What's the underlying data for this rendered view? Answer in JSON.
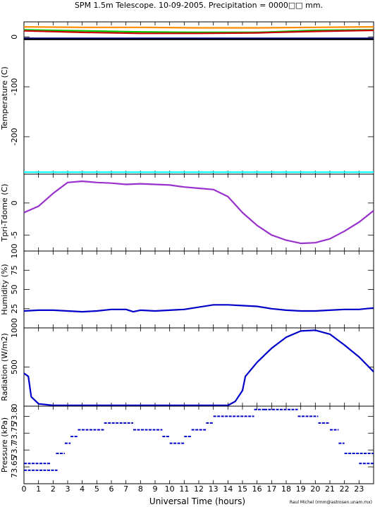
{
  "title": "SPM 1.5m Telescope. 10-09-2005. Precipitation = 0000□□ mm.",
  "xlabel": "Universal Time (hours)",
  "credit": "Raul Michel (rmm@astrosen.unam.mx)",
  "chart_data": [
    {
      "type": "line",
      "ylabel": "Temperature (C)",
      "ylim": [
        -275,
        30
      ],
      "yticks": [
        0,
        -100,
        -200
      ],
      "xlim": [
        0,
        24
      ],
      "series": [
        {
          "color": "#ff8c00",
          "x": [
            0,
            4,
            8,
            12,
            16,
            20,
            24
          ],
          "values": [
            20,
            19,
            19,
            18,
            18,
            19,
            20
          ]
        },
        {
          "color": "#00c800",
          "x": [
            0,
            4,
            8,
            12,
            16,
            20,
            24
          ],
          "values": [
            14,
            12,
            10,
            9,
            9,
            13,
            14
          ]
        },
        {
          "color": "#c80000",
          "x": [
            0,
            4,
            8,
            12,
            16,
            20,
            24
          ],
          "values": [
            12,
            9,
            7,
            7,
            8,
            11,
            13
          ]
        },
        {
          "color": "#000080",
          "x": [
            0,
            24
          ],
          "values": [
            -3,
            -3
          ]
        },
        {
          "color": "#000000",
          "x": [
            0,
            24
          ],
          "values": [
            -5,
            -5
          ]
        },
        {
          "color": "#00ffff",
          "x": [
            0,
            24
          ],
          "values": [
            -271,
            -271
          ]
        }
      ]
    },
    {
      "type": "line",
      "ylabel": "Tpri-Tdome (C)",
      "ylim": [
        -7.5,
        4.5
      ],
      "yticks": [
        0,
        -5
      ],
      "xlim": [
        0,
        24
      ],
      "series": [
        {
          "color": "#9932cc",
          "x": [
            0,
            1,
            2,
            3,
            4,
            5,
            6,
            7,
            8,
            9,
            10,
            11,
            12,
            13,
            14,
            15,
            16,
            17,
            18,
            19,
            20,
            21,
            22,
            23,
            24
          ],
          "values": [
            -1.5,
            -0.5,
            1.5,
            3.2,
            3.4,
            3.2,
            3.1,
            2.9,
            3.0,
            2.9,
            2.8,
            2.5,
            2.3,
            2.1,
            1.0,
            -1.5,
            -3.5,
            -5.0,
            -5.8,
            -6.3,
            -6.2,
            -5.6,
            -4.4,
            -3.0,
            -1.2
          ]
        }
      ]
    },
    {
      "type": "line",
      "ylabel": "Humidity (%)",
      "ylim": [
        0,
        100
      ],
      "yticks": [
        25,
        50,
        75,
        100
      ],
      "xlim": [
        0,
        24
      ],
      "series": [
        {
          "color": "#0000c8",
          "x": [
            0,
            1,
            2,
            3,
            4,
            5,
            6,
            7,
            7.5,
            8,
            9,
            10,
            11,
            12,
            13,
            14,
            15,
            16,
            17,
            18,
            19,
            20,
            21,
            22,
            23,
            24
          ],
          "values": [
            22,
            23,
            23,
            22,
            21,
            22,
            24,
            24,
            21,
            23,
            22,
            23,
            24,
            27,
            30,
            30,
            29,
            28,
            25,
            23,
            22,
            22,
            23,
            24,
            24,
            26
          ]
        }
      ]
    },
    {
      "type": "line",
      "ylabel": "Radiation (W/m2)",
      "ylim": [
        0,
        1000
      ],
      "yticks": [
        0,
        500,
        1000
      ],
      "xlim": [
        0,
        24
      ],
      "series": [
        {
          "color": "#0000c8",
          "x": [
            0,
            0.3,
            0.5,
            1,
            2,
            14,
            14.5,
            15,
            15.2,
            16,
            17,
            18,
            19,
            20,
            21,
            22,
            23,
            24
          ],
          "values": [
            420,
            380,
            120,
            30,
            10,
            10,
            60,
            200,
            380,
            560,
            740,
            880,
            960,
            970,
            920,
            780,
            630,
            440
          ]
        }
      ]
    },
    {
      "type": "scatter",
      "ylabel": "Pressure (kPa)",
      "ylim": [
        73.6,
        73.83
      ],
      "yticks": [
        73.65,
        73.7,
        73.75,
        73.8
      ],
      "ytick_labels": [
        "73.65",
        "73.7",
        "73.75",
        "73.8"
      ],
      "xlim": [
        0,
        24
      ],
      "segments": [
        {
          "x": [
            0,
            2.3
          ],
          "y": 73.64
        },
        {
          "x": [
            0,
            1.8
          ],
          "y": 73.66
        },
        {
          "x": [
            2.2,
            2.8
          ],
          "y": 73.69
        },
        {
          "x": [
            2.8,
            3.2
          ],
          "y": 73.72
        },
        {
          "x": [
            3.2,
            3.7
          ],
          "y": 73.74
        },
        {
          "x": [
            3.7,
            5.5
          ],
          "y": 73.76
        },
        {
          "x": [
            5.5,
            7.5
          ],
          "y": 73.78
        },
        {
          "x": [
            7.5,
            9.5
          ],
          "y": 73.76
        },
        {
          "x": [
            9.5,
            10.0
          ],
          "y": 73.74
        },
        {
          "x": [
            10.0,
            11.0
          ],
          "y": 73.72
        },
        {
          "x": [
            11.0,
            11.5
          ],
          "y": 73.74
        },
        {
          "x": [
            11.5,
            12.5
          ],
          "y": 73.76
        },
        {
          "x": [
            12.5,
            13.0
          ],
          "y": 73.78
        },
        {
          "x": [
            13.0,
            15.8
          ],
          "y": 73.8
        },
        {
          "x": [
            15.8,
            16.5
          ],
          "y": 73.82
        },
        {
          "x": [
            16.5,
            18.8
          ],
          "y": 73.82
        },
        {
          "x": [
            18.8,
            20.2
          ],
          "y": 73.8
        },
        {
          "x": [
            20.2,
            21.0
          ],
          "y": 73.78
        },
        {
          "x": [
            21.0,
            21.6
          ],
          "y": 73.76
        },
        {
          "x": [
            21.6,
            22.0
          ],
          "y": 73.72
        },
        {
          "x": [
            22.0,
            24
          ],
          "y": 73.69
        },
        {
          "x": [
            23.0,
            24
          ],
          "y": 73.66
        }
      ]
    }
  ]
}
